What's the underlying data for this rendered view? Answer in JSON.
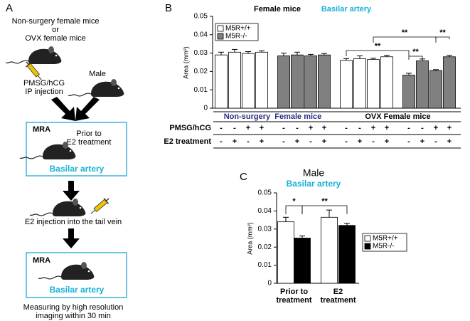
{
  "panel_labels": [
    "A",
    "B",
    "C"
  ],
  "diagram": {
    "start": [
      "Non-surgery female mice",
      "or",
      "OVX female mice"
    ],
    "injection": [
      "PMSG/hCG",
      "IP injection"
    ],
    "male": "Male",
    "box1": {
      "title": "MRA",
      "note": [
        "Prior to",
        "E2 treatment"
      ],
      "label": "Basilar artery"
    },
    "e2_injection": "E2 injection into the tail vein",
    "box2": {
      "title": "MRA",
      "label": "Basilar artery"
    },
    "footer": [
      "Measuring by high resolution",
      "imaging within 30 min"
    ]
  },
  "chart_data": [
    {
      "type": "bar",
      "title": "Female mice",
      "subtitle": "Basilar artery",
      "ylabel": "Area (mm²)",
      "ylim": [
        0,
        0.05
      ],
      "yticks": [
        0,
        0.01,
        0.02,
        0.03,
        0.04,
        0.05
      ],
      "series": [
        {
          "name": "M5R+/+",
          "color": "#ffffff",
          "values": [
            0.029,
            0.0305,
            0.0298,
            0.0305,
            null,
            null,
            null,
            null,
            0.026,
            0.027,
            0.0265,
            0.028,
            null,
            null,
            null,
            null
          ],
          "errors": [
            0.0015,
            0.0015,
            0.001,
            0.0007,
            null,
            null,
            null,
            null,
            0.001,
            0.0015,
            0.0007,
            0.0008,
            null,
            null,
            null,
            null
          ]
        },
        {
          "name": "M5R-/-",
          "color": "#808080",
          "values": [
            null,
            null,
            null,
            null,
            0.0285,
            0.029,
            0.0285,
            0.029,
            null,
            null,
            null,
            null,
            0.018,
            0.0258,
            0.0205,
            0.028
          ],
          "errors": [
            null,
            null,
            null,
            null,
            0.0015,
            0.0015,
            0.0008,
            0.0008,
            null,
            null,
            null,
            null,
            0.001,
            0.001,
            0.0005,
            0.0008
          ]
        }
      ],
      "groups": [
        {
          "label": "Non-surgery  Female mice",
          "color": "#2b2b8c"
        },
        {
          "label": "OVX Female mice",
          "color": "#000000"
        }
      ],
      "rows": [
        {
          "label": "PMSG/hCG",
          "marks": [
            "-",
            "-",
            "+",
            "+",
            "-",
            "-",
            "+",
            "+",
            "-",
            "-",
            "+",
            "+",
            "-",
            "-",
            "+",
            "+"
          ]
        },
        {
          "label": "E2 treatment",
          "marks": [
            "-",
            "+",
            "-",
            "+",
            "-",
            "+",
            "-",
            "+",
            "-",
            "+",
            "-",
            "+",
            "-",
            "+",
            "-",
            "+"
          ]
        }
      ],
      "annotations": [
        "**",
        "**",
        "**",
        "**"
      ]
    },
    {
      "type": "bar",
      "title": "Male",
      "subtitle": "Basilar artery",
      "ylabel": "Area (mm²)",
      "ylim": [
        0,
        0.05
      ],
      "yticks": [
        0,
        0.01,
        0.02,
        0.03,
        0.04,
        0.05
      ],
      "categories": [
        [
          "Prior to",
          "treatment"
        ],
        [
          "E2",
          "treatment"
        ]
      ],
      "series": [
        {
          "name": "M5R+/+",
          "color": "#ffffff",
          "values": [
            0.034,
            0.0365
          ],
          "errors": [
            0.0025,
            0.004
          ]
        },
        {
          "name": "M5R-/-",
          "color": "#000000",
          "values": [
            0.025,
            0.032
          ],
          "errors": [
            0.0012,
            0.0012
          ]
        }
      ],
      "annotations": [
        "*",
        "**"
      ]
    }
  ]
}
